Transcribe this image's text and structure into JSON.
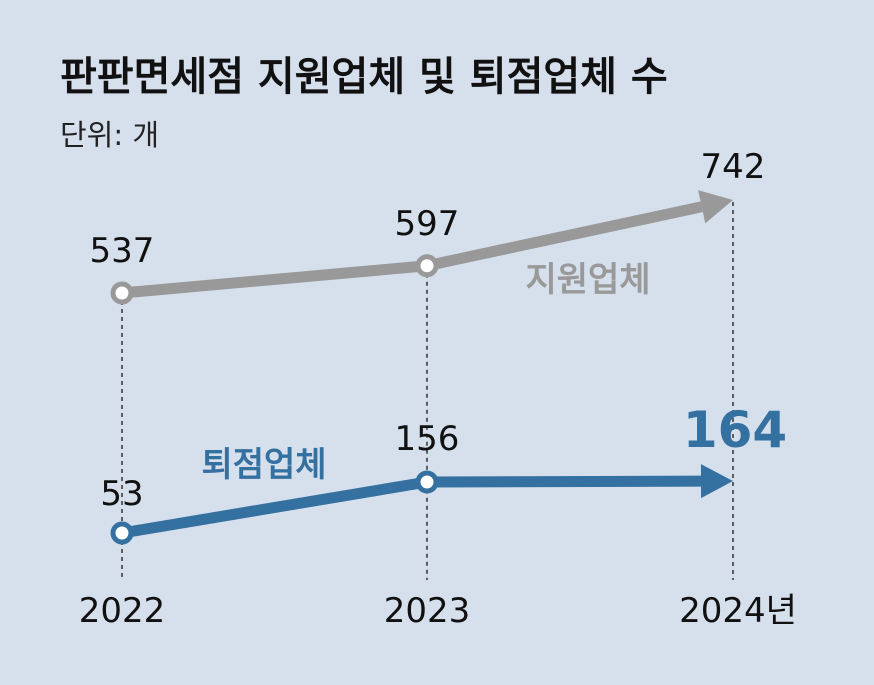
{
  "title": "판판면세점 지원업체 및 퇴점업체 수",
  "unit_label": "단위: 개",
  "chart_data": {
    "type": "line",
    "title": "판판면세점 지원업체 및 퇴점업체 수",
    "subtitle": "단위: 개",
    "x": [
      "2022",
      "2023",
      "2024년"
    ],
    "series": [
      {
        "name": "지원업체",
        "values": [
          537,
          597,
          742
        ],
        "color": "#999999"
      },
      {
        "name": "퇴점업체",
        "values": [
          53,
          156,
          164
        ],
        "color": "#3470a0"
      }
    ],
    "highlight": {
      "series": 1,
      "index": 2
    },
    "grid": false,
    "legend": "inline labels"
  }
}
